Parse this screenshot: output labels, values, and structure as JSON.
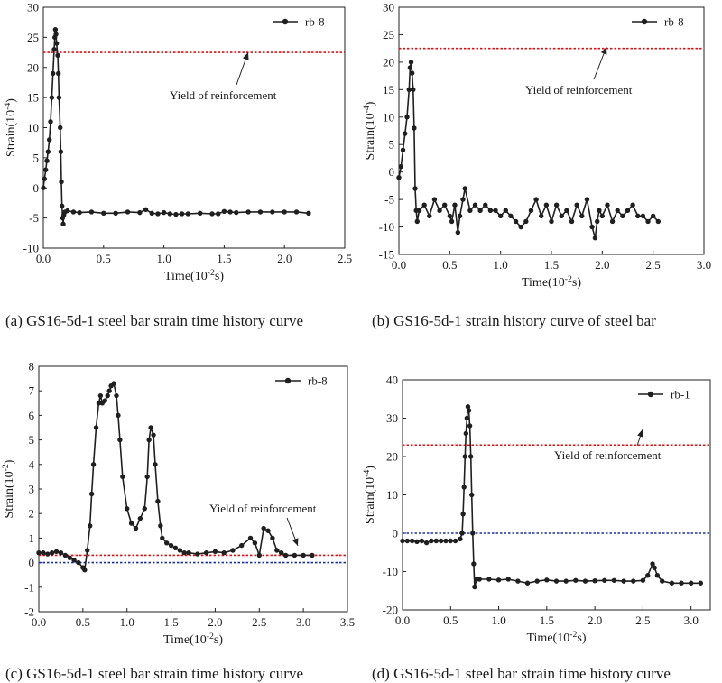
{
  "colors": {
    "series": "#1f1f1f",
    "yield_line": "#dd1111",
    "zero_line": "#1a2fa8"
  },
  "chart_data": [
    {
      "id": "a",
      "type": "line",
      "caption": "(a) GS16-5d-1 steel bar strain time history curve",
      "xlabel": "Time(10",
      "xlabel_sup": "-2",
      "xlabel_tail": "s)",
      "ylabel": "Strain(10",
      "ylabel_sup": "-4",
      "ylabel_tail": ")",
      "xlim": [
        0,
        2.5
      ],
      "ylim": [
        -10,
        30
      ],
      "xticks": [
        "0.0",
        "0.5",
        "1.0",
        "1.5",
        "2.0",
        "2.5"
      ],
      "yticks": [
        "-10",
        "-5",
        "0",
        "5",
        "10",
        "15",
        "20",
        "25",
        "30"
      ],
      "xtick_values": [
        0,
        0.5,
        1,
        1.5,
        2,
        2.5
      ],
      "ytick_values": [
        -10,
        -5,
        0,
        5,
        10,
        15,
        20,
        25,
        30
      ],
      "legend": "rb-8",
      "legend_position": "top-right",
      "yield_value": 22.5,
      "zero_line": false,
      "annotation": "Yield of reinforcement",
      "series": [
        {
          "name": "rb-8",
          "x": [
            0.0,
            0.01,
            0.02,
            0.03,
            0.04,
            0.05,
            0.06,
            0.07,
            0.08,
            0.09,
            0.095,
            0.1,
            0.105,
            0.11,
            0.12,
            0.125,
            0.13,
            0.14,
            0.145,
            0.15,
            0.155,
            0.16,
            0.165,
            0.17,
            0.18,
            0.2,
            0.25,
            0.3,
            0.4,
            0.5,
            0.6,
            0.7,
            0.8,
            0.85,
            0.9,
            0.95,
            1.0,
            1.05,
            1.1,
            1.15,
            1.2,
            1.3,
            1.4,
            1.45,
            1.5,
            1.55,
            1.6,
            1.7,
            1.8,
            1.9,
            2.0,
            2.1,
            2.2
          ],
          "y": [
            0,
            1.5,
            3,
            4.5,
            6,
            8,
            11,
            15,
            19,
            23,
            25,
            26.3,
            25.5,
            24,
            22,
            19,
            15,
            10,
            6,
            1,
            -3,
            -5,
            -6,
            -4.5,
            -4,
            -3.8,
            -4,
            -4.1,
            -4,
            -4.2,
            -4.2,
            -4,
            -4.1,
            -3.6,
            -4.2,
            -4.3,
            -4.1,
            -4.3,
            -4.4,
            -4.3,
            -4.3,
            -4.2,
            -4.3,
            -4.3,
            -3.9,
            -4,
            -4.1,
            -4,
            -4,
            -4,
            -4,
            -4,
            -4.2
          ]
        }
      ]
    },
    {
      "id": "b",
      "type": "line",
      "caption": "(b) GS16-5d-1 strain history curve of steel bar",
      "xlabel": "Time(10",
      "xlabel_sup": "-2",
      "xlabel_tail": "s)",
      "ylabel": "Strain(10",
      "ylabel_sup": "-4",
      "ylabel_tail": ")",
      "xlim": [
        0,
        3.0
      ],
      "ylim": [
        -15,
        30
      ],
      "xticks": [
        "0.0",
        "0.5",
        "1.0",
        "1.5",
        "2.0",
        "2.5",
        "3.0"
      ],
      "yticks": [
        "-15",
        "-10",
        "-5",
        "0",
        "5",
        "10",
        "15",
        "20",
        "25",
        "30"
      ],
      "xtick_values": [
        0,
        0.5,
        1,
        1.5,
        2,
        2.5,
        3
      ],
      "ytick_values": [
        -15,
        -10,
        -5,
        0,
        5,
        10,
        15,
        20,
        25,
        30
      ],
      "legend": "rb-8",
      "legend_position": "top-right",
      "yield_value": 22.5,
      "zero_line": false,
      "annotation": "Yield of reinforcement",
      "series": [
        {
          "name": "rb-8",
          "x": [
            0.0,
            0.02,
            0.04,
            0.06,
            0.08,
            0.1,
            0.11,
            0.12,
            0.13,
            0.14,
            0.15,
            0.16,
            0.17,
            0.18,
            0.2,
            0.25,
            0.3,
            0.35,
            0.4,
            0.45,
            0.5,
            0.52,
            0.55,
            0.58,
            0.6,
            0.63,
            0.65,
            0.7,
            0.75,
            0.8,
            0.85,
            0.9,
            0.95,
            1.0,
            1.05,
            1.1,
            1.15,
            1.2,
            1.25,
            1.3,
            1.35,
            1.4,
            1.45,
            1.5,
            1.55,
            1.6,
            1.65,
            1.7,
            1.75,
            1.8,
            1.85,
            1.9,
            1.93,
            1.95,
            1.97,
            2.0,
            2.05,
            2.1,
            2.15,
            2.2,
            2.25,
            2.3,
            2.35,
            2.4,
            2.45,
            2.5,
            2.55
          ],
          "y": [
            -1,
            1,
            4,
            7,
            10,
            15,
            19,
            20,
            18,
            15,
            8,
            -3,
            -7,
            -9,
            -7,
            -6,
            -8,
            -5,
            -7,
            -6,
            -8,
            -9,
            -6,
            -11,
            -8,
            -5,
            -3,
            -7,
            -6,
            -7,
            -6,
            -7,
            -7,
            -8,
            -7,
            -8,
            -9,
            -10,
            -9,
            -7,
            -5,
            -8,
            -6,
            -9,
            -6,
            -8,
            -7,
            -9,
            -6,
            -8,
            -5,
            -10,
            -12,
            -9,
            -7,
            -8,
            -6,
            -9,
            -7,
            -8,
            -7,
            -6,
            -8,
            -8,
            -9,
            -8,
            -9
          ]
        }
      ]
    },
    {
      "id": "c",
      "type": "line",
      "caption": "(c) GS16-5d-1 steel bar strain time history curve",
      "xlabel": "Time(10",
      "xlabel_sup": "-2",
      "xlabel_tail": "s)",
      "ylabel": "Strain(10",
      "ylabel_sup": "-2",
      "ylabel_tail": ")",
      "xlim": [
        0,
        3.5
      ],
      "ylim": [
        -2,
        8
      ],
      "xticks": [
        "0.0",
        "0.5",
        "1.0",
        "1.5",
        "2.0",
        "2.5",
        "3.0",
        "3.5"
      ],
      "yticks": [
        "-2",
        "-1",
        "0",
        "1",
        "2",
        "3",
        "4",
        "5",
        "6",
        "7",
        "8"
      ],
      "xtick_values": [
        0,
        0.5,
        1,
        1.5,
        2,
        2.5,
        3,
        3.5
      ],
      "ytick_values": [
        -2,
        -1,
        0,
        1,
        2,
        3,
        4,
        5,
        6,
        7,
        8
      ],
      "legend": "rb-8",
      "legend_position": "top-right",
      "yield_value": 0.3,
      "zero_line": true,
      "annotation": "Yield of reinforcement",
      "series": [
        {
          "name": "rb-8",
          "x": [
            0.0,
            0.05,
            0.1,
            0.15,
            0.2,
            0.25,
            0.3,
            0.35,
            0.4,
            0.45,
            0.5,
            0.52,
            0.55,
            0.58,
            0.6,
            0.62,
            0.65,
            0.68,
            0.7,
            0.72,
            0.75,
            0.78,
            0.8,
            0.82,
            0.85,
            0.88,
            0.9,
            0.92,
            0.95,
            1.0,
            1.05,
            1.1,
            1.15,
            1.2,
            1.23,
            1.25,
            1.27,
            1.3,
            1.32,
            1.35,
            1.38,
            1.4,
            1.45,
            1.5,
            1.55,
            1.6,
            1.65,
            1.7,
            1.8,
            1.9,
            2.0,
            2.1,
            2.2,
            2.3,
            2.4,
            2.45,
            2.5,
            2.55,
            2.6,
            2.65,
            2.7,
            2.75,
            2.8,
            2.9,
            3.0,
            3.1
          ],
          "y": [
            0.4,
            0.4,
            0.35,
            0.4,
            0.45,
            0.4,
            0.3,
            0.2,
            0.1,
            0.0,
            -0.2,
            -0.3,
            0.5,
            1.5,
            2.8,
            4.0,
            5.5,
            6.5,
            6.8,
            6.5,
            6.6,
            6.8,
            7.0,
            7.2,
            7.3,
            6.8,
            6.0,
            5.0,
            3.5,
            2.2,
            1.6,
            1.4,
            1.8,
            2.2,
            3.5,
            5.0,
            5.5,
            5.2,
            4.0,
            2.5,
            1.5,
            1.0,
            0.8,
            0.7,
            0.6,
            0.5,
            0.4,
            0.4,
            0.35,
            0.4,
            0.45,
            0.4,
            0.5,
            0.7,
            1.0,
            0.8,
            0.3,
            1.4,
            1.3,
            1.0,
            0.5,
            0.4,
            0.3,
            0.3,
            0.3,
            0.3
          ]
        }
      ]
    },
    {
      "id": "d",
      "type": "line",
      "caption": "(d) GS16-5d-1 steel bar strain time history curve",
      "xlabel": "Time(10",
      "xlabel_sup": "-2",
      "xlabel_tail": "s)",
      "ylabel": "Strain(10",
      "ylabel_sup": "-4",
      "ylabel_tail": ")",
      "xlim": [
        0,
        3.2
      ],
      "ylim": [
        -20,
        40
      ],
      "xticks": [
        "0.0",
        "0.5",
        "1.0",
        "1.5",
        "2.0",
        "2.5",
        "3.0"
      ],
      "yticks": [
        "-20",
        "-10",
        "0",
        "10",
        "20",
        "30",
        "40"
      ],
      "xtick_values": [
        0,
        0.5,
        1,
        1.5,
        2,
        2.5,
        3
      ],
      "ytick_values": [
        -20,
        -10,
        0,
        10,
        20,
        30,
        40
      ],
      "legend": "rb-1",
      "legend_position": "top-right",
      "yield_value": 23,
      "zero_line": true,
      "annotation": "Yield of reinforcement",
      "series": [
        {
          "name": "rb-1",
          "x": [
            0.0,
            0.05,
            0.1,
            0.15,
            0.2,
            0.25,
            0.3,
            0.35,
            0.4,
            0.45,
            0.5,
            0.55,
            0.6,
            0.62,
            0.63,
            0.64,
            0.65,
            0.66,
            0.67,
            0.68,
            0.69,
            0.7,
            0.71,
            0.72,
            0.73,
            0.74,
            0.75,
            0.77,
            0.8,
            0.9,
            1.0,
            1.1,
            1.2,
            1.3,
            1.4,
            1.5,
            1.6,
            1.7,
            1.8,
            1.9,
            2.0,
            2.1,
            2.2,
            2.3,
            2.4,
            2.5,
            2.55,
            2.6,
            2.62,
            2.65,
            2.7,
            2.8,
            2.9,
            3.0,
            3.1
          ],
          "y": [
            -2,
            -2,
            -2,
            -2.2,
            -2,
            -2.5,
            -2,
            -2,
            -2,
            -2,
            -2,
            -2,
            -1.5,
            0,
            5,
            12,
            20,
            26,
            30,
            33,
            32,
            28,
            20,
            10,
            0,
            -8,
            -14,
            -12,
            -12,
            -12,
            -12.2,
            -12,
            -12.5,
            -13,
            -12.5,
            -12.2,
            -12.5,
            -12.5,
            -12.3,
            -12.5,
            -12.4,
            -12.3,
            -12.3,
            -12.5,
            -12.5,
            -12.3,
            -11,
            -8,
            -9,
            -11,
            -12.5,
            -13,
            -13,
            -13,
            -13
          ]
        }
      ]
    }
  ]
}
